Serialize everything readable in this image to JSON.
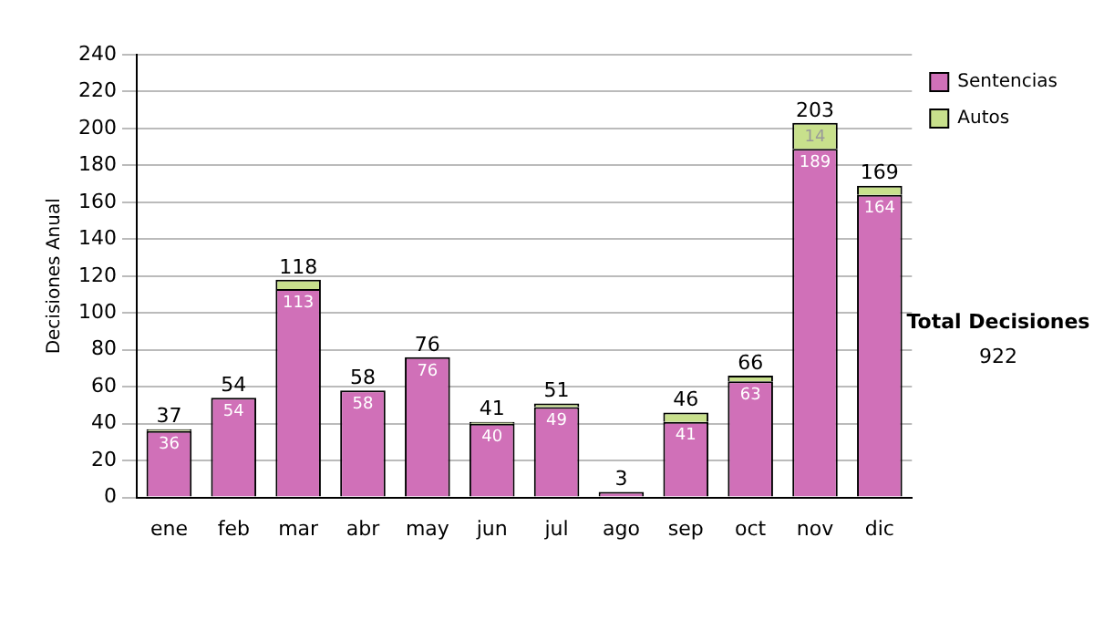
{
  "chart_data": {
    "type": "bar",
    "ylabel": "Decisiones Anual",
    "categories": [
      "ene",
      "feb",
      "mar",
      "abr",
      "may",
      "jun",
      "jul",
      "ago",
      "sep",
      "oct",
      "nov",
      "dic"
    ],
    "series": [
      {
        "name": "Sentencias",
        "color": "#d070b8",
        "values": [
          36,
          54,
          113,
          58,
          76,
          40,
          49,
          3,
          41,
          63,
          189,
          164
        ],
        "value_labels": [
          "36",
          "54",
          "113",
          "58",
          "76",
          "40",
          "49",
          null,
          "41",
          "63",
          "189",
          "164"
        ]
      },
      {
        "name": "Autos",
        "color": "#c8e08c",
        "values": [
          1,
          0,
          5,
          0,
          0,
          1,
          2,
          0,
          5,
          3,
          14,
          5
        ],
        "value_labels": [
          null,
          null,
          null,
          null,
          null,
          null,
          null,
          null,
          null,
          null,
          "14",
          null
        ]
      }
    ],
    "stacked": true,
    "ylim": [
      0,
      240
    ],
    "yticks": [
      0,
      20,
      40,
      60,
      80,
      100,
      120,
      140,
      160,
      180,
      200,
      220,
      240
    ],
    "grid": "y",
    "legend": "right",
    "totals": [
      "37",
      "54",
      "118",
      "58",
      "76",
      "41",
      "51",
      "3",
      "46",
      "66",
      "203",
      "169"
    ],
    "annotations": [
      "Total Decisiones",
      "922"
    ]
  }
}
